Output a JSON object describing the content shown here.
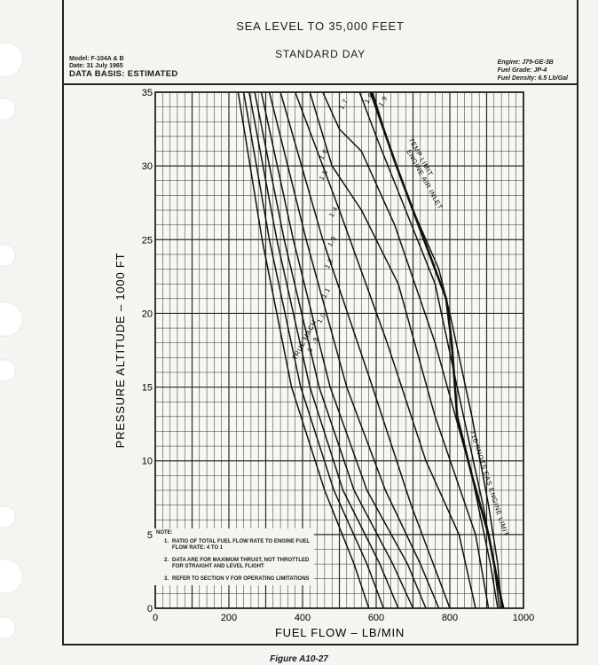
{
  "header": {
    "title_1": "SEA LEVEL TO 35,000 FEET",
    "title_2": "STANDARD DAY",
    "model": "Model:  F-104A & B",
    "date": "Date:  31 July 1965",
    "data_basis": "DATA BASIS:  ESTIMATED",
    "engine": "Engine:  J79-GE-3B",
    "fuel_grade": "Fuel Grade:  JP-4",
    "fuel_density": "Fuel Density:  6.5 Lb/Gal"
  },
  "note": {
    "heading": "NOTE:",
    "items": [
      {
        "num": "1.",
        "text": "RATIO OF TOTAL FUEL FLOW RATE TO ENGINE FUEL FLOW RATE:  4 TO 1"
      },
      {
        "num": "2.",
        "text": "DATA ARE FOR MAXIMUM THRUST, NOT THROTTLED FOR STRAIGHT AND LEVEL FLIGHT"
      },
      {
        "num": "3.",
        "text": "REFER TO SECTION V FOR OPERATING LIMITATIONS"
      }
    ]
  },
  "caption": "Figure A10-27",
  "chart_data": {
    "type": "line",
    "xlabel": "FUEL FLOW – LB/MIN",
    "ylabel": "PRESSURE ALTITUDE – 1000 FT",
    "xlim": [
      0,
      1000
    ],
    "ylim": [
      0,
      35
    ],
    "x_ticks": [
      0,
      200,
      400,
      600,
      800,
      1000
    ],
    "y_ticks": [
      0,
      5,
      10,
      15,
      20,
      25,
      30,
      35
    ],
    "grid": true,
    "series": [
      {
        "name": ".8",
        "points": [
          [
            225,
            35
          ],
          [
            290,
            25
          ],
          [
            370,
            15
          ],
          [
            460,
            8
          ],
          [
            540,
            3
          ],
          [
            580,
            0
          ]
        ]
      },
      {
        "name": ".9",
        "points": [
          [
            240,
            35
          ],
          [
            310,
            25
          ],
          [
            395,
            15
          ],
          [
            485,
            8
          ],
          [
            575,
            3
          ],
          [
            620,
            0
          ]
        ]
      },
      {
        "name": "1.0",
        "points": [
          [
            255,
            35
          ],
          [
            330,
            25
          ],
          [
            420,
            15
          ],
          [
            510,
            8
          ],
          [
            610,
            3
          ],
          [
            660,
            0
          ]
        ]
      },
      {
        "name": "1.1",
        "points": [
          [
            270,
            35
          ],
          [
            350,
            25
          ],
          [
            445,
            15
          ],
          [
            540,
            8
          ],
          [
            645,
            3
          ],
          [
            700,
            0
          ]
        ]
      },
      {
        "name": "1.2",
        "points": [
          [
            288,
            35
          ],
          [
            375,
            25
          ],
          [
            475,
            15
          ],
          [
            575,
            8
          ],
          [
            685,
            3
          ],
          [
            735,
            0
          ]
        ]
      },
      {
        "name": "1.3",
        "points": [
          [
            310,
            35
          ],
          [
            410,
            25
          ],
          [
            520,
            15
          ],
          [
            625,
            8
          ],
          [
            720,
            3
          ],
          [
            770,
            0
          ]
        ]
      },
      {
        "name": "1.4",
        "points": [
          [
            340,
            35
          ],
          [
            455,
            25
          ],
          [
            590,
            15
          ],
          [
            695,
            7
          ],
          [
            770,
            2
          ],
          [
            800,
            0
          ]
        ]
      },
      {
        "name": "1.5",
        "points": [
          [
            380,
            35
          ],
          [
            500,
            27
          ],
          [
            630,
            18
          ],
          [
            735,
            10
          ],
          [
            825,
            5
          ],
          [
            870,
            0
          ]
        ]
      },
      {
        "name": "1.6",
        "points": [
          [
            420,
            35
          ],
          [
            480,
            30
          ],
          [
            560,
            27
          ],
          [
            660,
            22
          ],
          [
            760,
            13
          ],
          [
            870,
            5
          ],
          [
            905,
            0
          ]
        ]
      },
      {
        "name": "1.7",
        "points": [
          [
            455,
            35
          ],
          [
            500,
            32.5
          ],
          [
            560,
            31
          ],
          [
            650,
            26
          ],
          [
            760,
            18
          ],
          [
            860,
            9
          ],
          [
            910,
            3
          ],
          [
            930,
            0
          ]
        ]
      },
      {
        "name": "1.8",
        "points": [
          [
            555,
            35
          ],
          [
            600,
            32
          ],
          [
            680,
            27
          ],
          [
            760,
            22
          ],
          [
            820,
            15
          ],
          [
            890,
            7
          ],
          [
            920,
            3
          ],
          [
            935,
            0
          ]
        ]
      },
      {
        "name": "1.9",
        "points": [
          [
            590,
            35
          ],
          [
            640,
            31
          ],
          [
            700,
            27
          ],
          [
            770,
            23
          ],
          [
            800,
            20
          ],
          [
            860,
            13
          ],
          [
            905,
            7
          ],
          [
            930,
            3
          ],
          [
            940,
            0
          ]
        ]
      },
      {
        "name": "ENGINE AIR INLET TEMP LIMIT",
        "points": [
          [
            585,
            35
          ],
          [
            655,
            30
          ],
          [
            730,
            25
          ],
          [
            790,
            21
          ],
          [
            805,
            18
          ]
        ]
      },
      {
        "name": "710 KNOTS EAS ENGINE LIMIT",
        "points": [
          [
            805,
            18
          ],
          [
            820,
            13
          ],
          [
            860,
            9
          ],
          [
            905,
            5
          ],
          [
            928,
            2
          ],
          [
            945,
            0
          ]
        ]
      }
    ],
    "annotations": [
      {
        "text": "1.7",
        "x": 510,
        "y": 33.8,
        "angle": -62
      },
      {
        "text": "1.8",
        "x": 578,
        "y": 34.2,
        "angle": -60
      },
      {
        "text": "1.9",
        "x": 616,
        "y": 34.0,
        "angle": -60
      },
      {
        "text": "1.6",
        "x": 455,
        "y": 30.4,
        "angle": -62
      },
      {
        "text": "1.5",
        "x": 455,
        "y": 29.0,
        "angle": -62
      },
      {
        "text": "1.4",
        "x": 482,
        "y": 26.5,
        "angle": -62
      },
      {
        "text": "1.3",
        "x": 478,
        "y": 24.5,
        "angle": -62
      },
      {
        "text": "1.2",
        "x": 470,
        "y": 23.0,
        "angle": -62
      },
      {
        "text": "1.1",
        "x": 462,
        "y": 21.0,
        "angle": -62
      },
      {
        "text": "1.0",
        "x": 450,
        "y": 19.3,
        "angle": -62
      },
      {
        "text": ".9",
        "x": 435,
        "y": 17.9,
        "angle": -62
      },
      {
        "text": ".8",
        "x": 420,
        "y": 17.2,
        "angle": -62
      },
      {
        "text": "TRUE MACH",
        "x": 382,
        "y": 16.8,
        "angle": -62
      },
      {
        "text": "ENGINE AIR INLET",
        "x": 682,
        "y": 31.0,
        "angle": 61
      },
      {
        "text": "TEMP LIMIT",
        "x": 688,
        "y": 31.8,
        "angle": 61
      },
      {
        "text": "710 KNOTS EAS ENGINE LIMIT",
        "x": 855,
        "y": 12.0,
        "angle": 72
      }
    ]
  }
}
